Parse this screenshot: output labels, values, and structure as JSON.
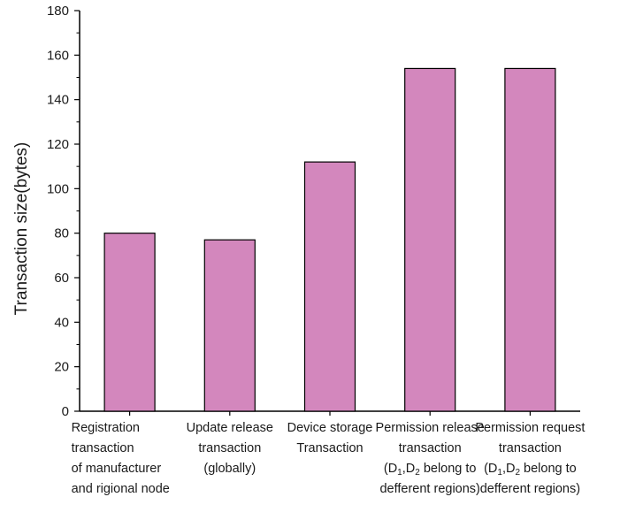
{
  "chart_data": {
    "type": "bar",
    "title": "",
    "xlabel": "",
    "ylabel": "Transaction size(bytes)",
    "ylim": [
      0,
      180
    ],
    "yticks": [
      0,
      20,
      40,
      60,
      80,
      100,
      120,
      140,
      160,
      180
    ],
    "grid": false,
    "bar_color": "#d387bd",
    "categories": [
      "Registration transaction of manufacturer and rigional node",
      "Update release transaction (globally)",
      "Device storage Transaction",
      "Permission release transaction (D1,D2 belong to defferent regions)",
      "Permission request transaction (D1,D2 belong to defferent regions)"
    ],
    "category_lines": [
      [
        {
          "text": "Registration"
        },
        {
          "text": "transaction"
        },
        {
          "text": "of manufacturer"
        },
        {
          "text": "and rigional node"
        }
      ],
      [
        {
          "text": "Update release"
        },
        {
          "text": "transaction"
        },
        {
          "text": "(globally)"
        }
      ],
      [
        {
          "text": "Device storage"
        },
        {
          "text": "Transaction"
        }
      ],
      [
        {
          "text": "Permission release"
        },
        {
          "text": "transaction"
        },
        {
          "text": "(D1,D2 belong to",
          "parts": [
            {
              "t": "(D"
            },
            {
              "sub": "1"
            },
            {
              "t": ",D"
            },
            {
              "sub": "2"
            },
            {
              "t": " belong to"
            }
          ]
        },
        {
          "text": "defferent regions)"
        }
      ],
      [
        {
          "text": "Permission request"
        },
        {
          "text": "transaction"
        },
        {
          "text": "(D1,D2 belong to",
          "parts": [
            {
              "t": "(D"
            },
            {
              "sub": "1"
            },
            {
              "t": ",D"
            },
            {
              "sub": "2"
            },
            {
              "t": " belong to"
            }
          ]
        },
        {
          "text": "defferent regions)"
        }
      ]
    ],
    "values": [
      80,
      77,
      112,
      154,
      154
    ]
  }
}
